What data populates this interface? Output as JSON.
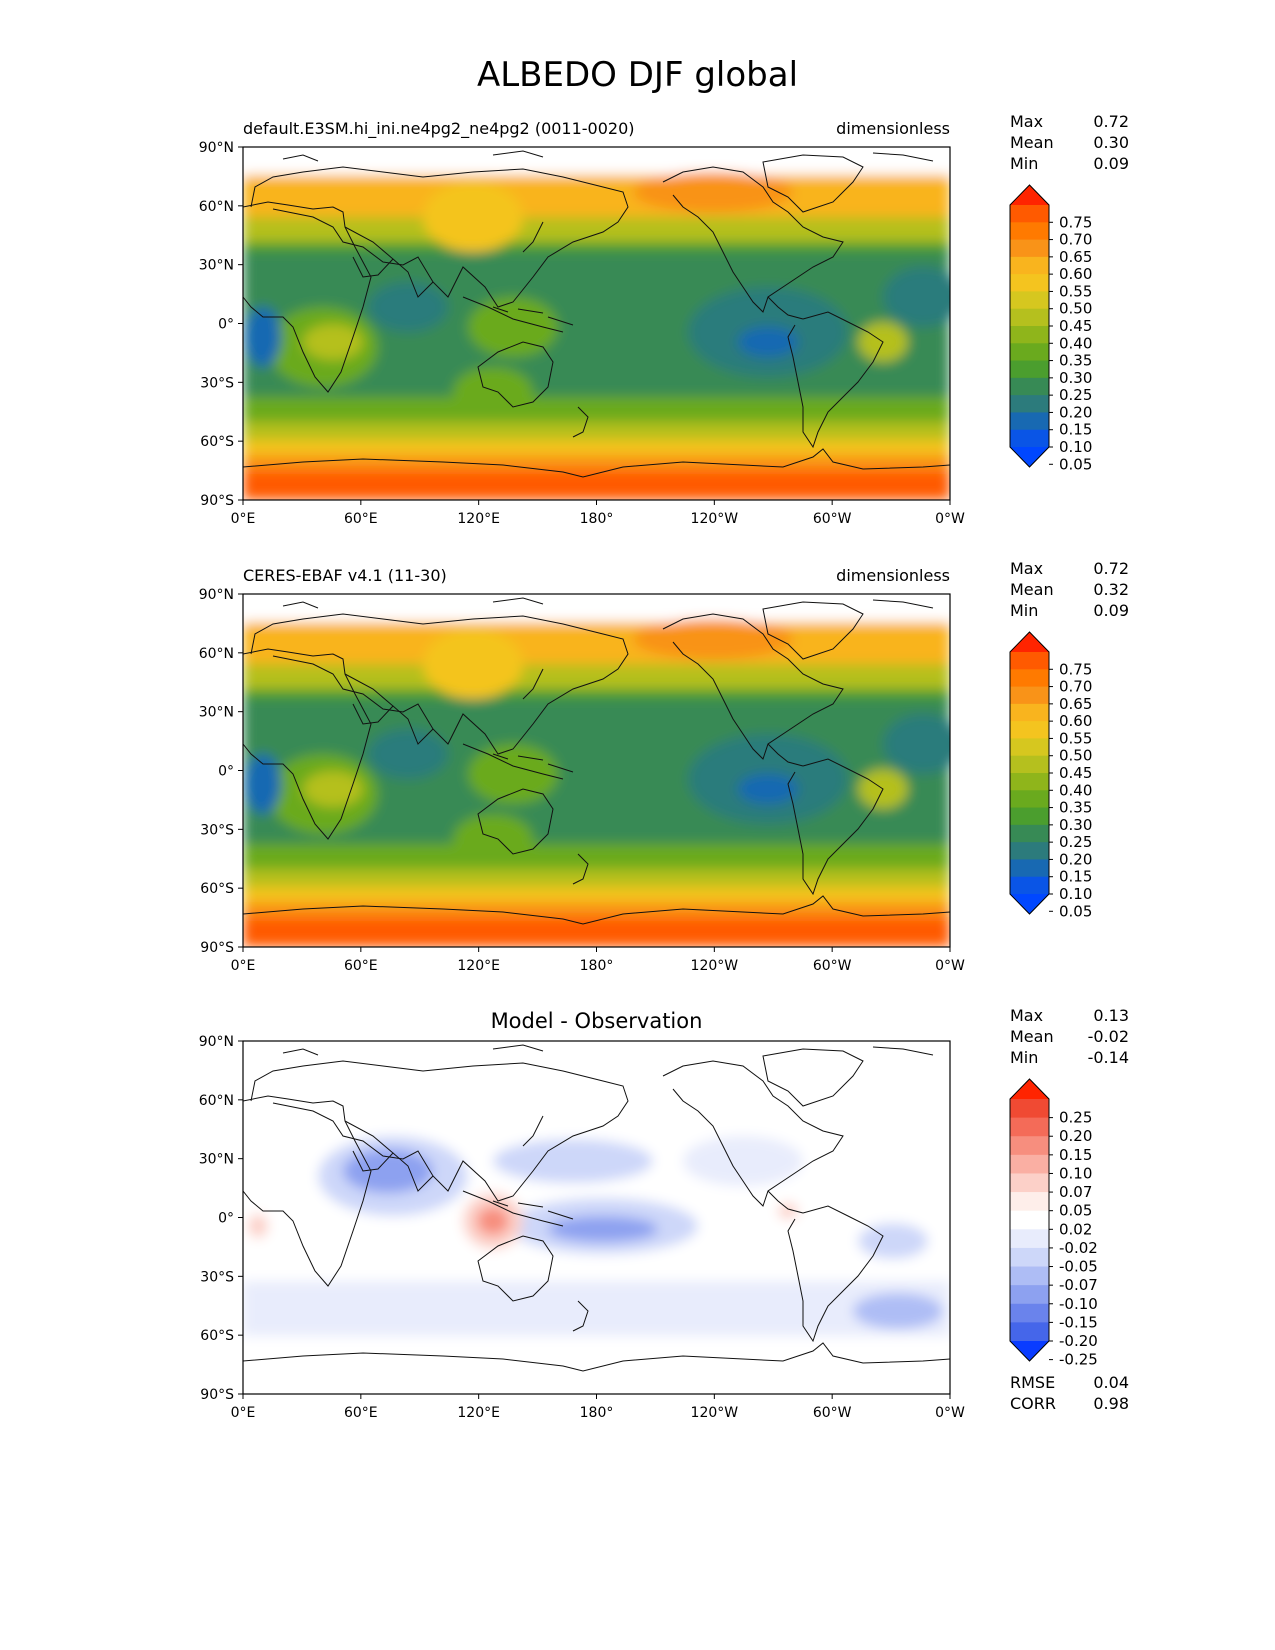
{
  "title": "ALBEDO DJF global",
  "axes": {
    "y_ticks": [
      "90°N",
      "60°N",
      "30°N",
      "0°",
      "30°S",
      "60°S",
      "90°S"
    ],
    "x_ticks": [
      "0°E",
      "60°E",
      "120°E",
      "180°",
      "120°W",
      "60°W",
      "0°W"
    ]
  },
  "panels": [
    {
      "left_title": "default.E3SM.hi_ini.ne4pg2_ne4pg2 (0011-0020)",
      "center_title": "",
      "units": "dimensionless",
      "stats": [
        {
          "label": "Max",
          "value": "0.72"
        },
        {
          "label": "Mean",
          "value": "0.30"
        },
        {
          "label": "Min",
          "value": "0.09"
        }
      ],
      "colorbar": {
        "labels": [
          "0.75",
          "0.70",
          "0.65",
          "0.60",
          "0.55",
          "0.50",
          "0.45",
          "0.40",
          "0.35",
          "0.30",
          "0.25",
          "0.20",
          "0.15",
          "0.10",
          "0.05"
        ],
        "colors": [
          "#ff2400",
          "#ff5a00",
          "#ff7a00",
          "#f99318",
          "#f9b41e",
          "#f4c41f",
          "#d6c71f",
          "#b5c01e",
          "#8fb51b",
          "#6aaa1e",
          "#4b9e2e",
          "#378a55",
          "#2c7b7c",
          "#1869b2",
          "#0a55e6",
          "#0047ff"
        ]
      }
    },
    {
      "left_title": "CERES-EBAF v4.1 (11-30)",
      "center_title": "",
      "units": "dimensionless",
      "stats": [
        {
          "label": "Max",
          "value": "0.72"
        },
        {
          "label": "Mean",
          "value": "0.32"
        },
        {
          "label": "Min",
          "value": "0.09"
        }
      ],
      "colorbar": {
        "labels": [
          "0.75",
          "0.70",
          "0.65",
          "0.60",
          "0.55",
          "0.50",
          "0.45",
          "0.40",
          "0.35",
          "0.30",
          "0.25",
          "0.20",
          "0.15",
          "0.10",
          "0.05"
        ],
        "colors": [
          "#ff2400",
          "#ff5a00",
          "#ff7a00",
          "#f99318",
          "#f9b41e",
          "#f4c41f",
          "#d6c71f",
          "#b5c01e",
          "#8fb51b",
          "#6aaa1e",
          "#4b9e2e",
          "#378a55",
          "#2c7b7c",
          "#1869b2",
          "#0a55e6",
          "#0047ff"
        ]
      }
    },
    {
      "left_title": "",
      "center_title": "Model - Observation",
      "units": "",
      "stats": [
        {
          "label": "Max",
          "value": "0.13"
        },
        {
          "label": "Mean",
          "value": "-0.02"
        },
        {
          "label": "Min",
          "value": "-0.14"
        }
      ],
      "extra_stats": [
        {
          "label": "RMSE",
          "value": "0.04"
        },
        {
          "label": "CORR",
          "value": "0.98"
        }
      ],
      "colorbar": {
        "labels": [
          "0.25",
          "0.20",
          "0.15",
          "0.10",
          "0.07",
          "0.05",
          "0.02",
          "-0.02",
          "-0.05",
          "-0.07",
          "-0.10",
          "-0.15",
          "-0.20",
          "-0.25"
        ],
        "colors": [
          "#ff2400",
          "#f04a33",
          "#f46b58",
          "#f78e7e",
          "#faafa3",
          "#fcd0c8",
          "#feeeea",
          "#ffffff",
          "#e8ecfc",
          "#cdd7f9",
          "#aebdf5",
          "#8da1f0",
          "#6a83ec",
          "#4566ea",
          "#0a3cff"
        ]
      }
    }
  ],
  "chart_data": [
    {
      "type": "heatmap",
      "title": "ALBEDO DJF global",
      "subtitle": "default.E3SM.hi_ini.ne4pg2_ne4pg2 (0011-0020)",
      "units": "dimensionless",
      "xlim": [
        0,
        360
      ],
      "ylim": [
        -90,
        90
      ],
      "x_ticks": [
        "0°E",
        "60°E",
        "120°E",
        "180°",
        "120°W",
        "60°W",
        "0°W"
      ],
      "y_ticks": [
        "90°N",
        "60°N",
        "30°N",
        "0°",
        "30°S",
        "60°S",
        "90°S"
      ],
      "levels": [
        0.05,
        0.1,
        0.15,
        0.2,
        0.25,
        0.3,
        0.35,
        0.4,
        0.45,
        0.5,
        0.55,
        0.6,
        0.65,
        0.7,
        0.75
      ],
      "stats": {
        "max": 0.72,
        "mean": 0.3,
        "min": 0.09
      },
      "zonal_mean_profile": {
        "lat": [
          75,
          60,
          45,
          30,
          15,
          0,
          -15,
          -30,
          -45,
          -60,
          -75,
          -90
        ],
        "value": [
          0.62,
          0.55,
          0.45,
          0.3,
          0.18,
          0.22,
          0.2,
          0.22,
          0.35,
          0.45,
          0.66,
          0.7
        ]
      }
    },
    {
      "type": "heatmap",
      "title": "ALBEDO DJF global",
      "subtitle": "CERES-EBAF v4.1 (11-30)",
      "units": "dimensionless",
      "xlim": [
        0,
        360
      ],
      "ylim": [
        -90,
        90
      ],
      "x_ticks": [
        "0°E",
        "60°E",
        "120°E",
        "180°",
        "120°W",
        "60°W",
        "0°W"
      ],
      "y_ticks": [
        "90°N",
        "60°N",
        "30°N",
        "0°",
        "30°S",
        "60°S",
        "90°S"
      ],
      "levels": [
        0.05,
        0.1,
        0.15,
        0.2,
        0.25,
        0.3,
        0.35,
        0.4,
        0.45,
        0.5,
        0.55,
        0.6,
        0.65,
        0.7,
        0.75
      ],
      "stats": {
        "max": 0.72,
        "mean": 0.32,
        "min": 0.09
      },
      "zonal_mean_profile": {
        "lat": [
          75,
          60,
          45,
          30,
          15,
          0,
          -15,
          -30,
          -45,
          -60,
          -75,
          -90
        ],
        "value": [
          0.62,
          0.57,
          0.48,
          0.32,
          0.22,
          0.24,
          0.22,
          0.24,
          0.36,
          0.46,
          0.66,
          0.7
        ]
      }
    },
    {
      "type": "heatmap",
      "title": "Model - Observation",
      "xlim": [
        0,
        360
      ],
      "ylim": [
        -90,
        90
      ],
      "x_ticks": [
        "0°E",
        "60°E",
        "120°E",
        "180°",
        "120°W",
        "60°W",
        "0°W"
      ],
      "y_ticks": [
        "90°N",
        "60°N",
        "30°N",
        "0°",
        "30°S",
        "60°S",
        "90°S"
      ],
      "levels": [
        -0.25,
        -0.2,
        -0.15,
        -0.1,
        -0.07,
        -0.05,
        -0.02,
        0.02,
        0.05,
        0.07,
        0.1,
        0.15,
        0.2,
        0.25
      ],
      "stats": {
        "max": 0.13,
        "mean": -0.02,
        "min": -0.14,
        "rmse": 0.04,
        "corr": 0.98
      }
    }
  ]
}
